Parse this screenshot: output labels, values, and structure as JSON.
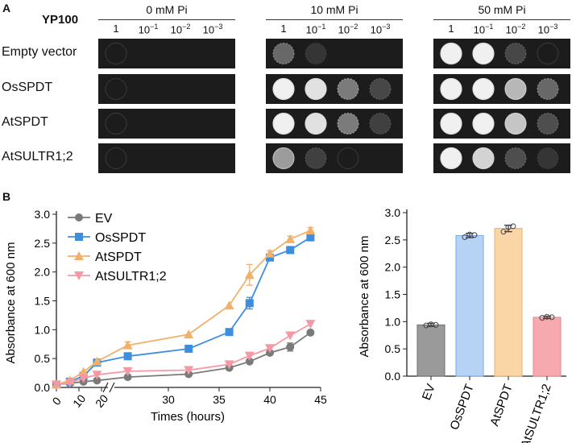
{
  "panel_a": {
    "letter": "A",
    "strain_header": "YP100",
    "conditions": [
      {
        "label": "0 mM Pi",
        "growth": [
          [
            0.05,
            0,
            0,
            0
          ],
          [
            0.05,
            0,
            0,
            0
          ],
          [
            0.05,
            0,
            0,
            0
          ],
          [
            0.05,
            0,
            0,
            0
          ]
        ]
      },
      {
        "label": "10 mM Pi",
        "growth": [
          [
            0.45,
            0.1,
            0,
            0
          ],
          [
            1,
            0.95,
            0.55,
            0.25
          ],
          [
            1,
            0.95,
            0.55,
            0.2
          ],
          [
            0.7,
            0.2,
            0.05,
            0
          ]
        ]
      },
      {
        "label": "50 mM Pi",
        "growth": [
          [
            1,
            1,
            0.25,
            0.05
          ],
          [
            1,
            1,
            0.8,
            0.45
          ],
          [
            1,
            1,
            0.85,
            0.3
          ],
          [
            1,
            0.9,
            0.3,
            0.1
          ]
        ]
      }
    ],
    "dilutions": [
      {
        "base": "1",
        "exp": ""
      },
      {
        "base": "10",
        "exp": "−1"
      },
      {
        "base": "10",
        "exp": "−2"
      },
      {
        "base": "10",
        "exp": "−3"
      }
    ],
    "strains": [
      "Empty vector",
      "OsSPDT",
      "AtSPDT",
      "AtSULTR1;2"
    ]
  },
  "panel_b": {
    "letter": "B"
  },
  "chart_data": [
    {
      "type": "line",
      "xlabel": "Times (hours)",
      "ylabel": "Absorbance at 600 nm",
      "ylim": [
        0,
        3.0
      ],
      "y_ticks": [
        "0.0",
        "0.5",
        "1.0",
        "1.5",
        "2.0",
        "2.5",
        "3.0"
      ],
      "x_ticks_early": [
        "0",
        "10",
        "20"
      ],
      "x_ticks_late": [
        "30",
        "35",
        "40",
        "45"
      ],
      "x_axis_break": true,
      "grid": false,
      "legend": "top-left",
      "x": [
        0,
        6,
        12,
        18,
        26,
        32,
        36,
        38,
        40,
        42,
        44
      ],
      "series": [
        {
          "name": "EV",
          "color": "#7a7a7a",
          "marker": "circle",
          "values": [
            0.05,
            0.07,
            0.1,
            0.12,
            0.18,
            0.23,
            0.34,
            0.45,
            0.6,
            0.7,
            0.95
          ],
          "errors": [
            0,
            0,
            0,
            0,
            0,
            0,
            0,
            0,
            0.03,
            0.07,
            0.03
          ]
        },
        {
          "name": "OsSPDT",
          "color": "#3e8ee0",
          "marker": "square",
          "values": [
            0.05,
            0.1,
            0.2,
            0.43,
            0.54,
            0.67,
            0.96,
            1.46,
            2.25,
            2.38,
            2.6
          ],
          "errors": [
            0,
            0,
            0,
            0,
            0,
            0,
            0,
            0.1,
            0.05,
            0.04,
            0.04
          ]
        },
        {
          "name": "AtSPDT",
          "color": "#f2b16a",
          "marker": "triangle-up",
          "values": [
            0.05,
            0.12,
            0.27,
            0.45,
            0.73,
            0.92,
            1.42,
            1.95,
            2.32,
            2.57,
            2.72
          ],
          "errors": [
            0,
            0,
            0,
            0,
            0.06,
            0,
            0,
            0.18,
            0.05,
            0.05,
            0.05
          ]
        },
        {
          "name": "AtSULTR1;2",
          "color": "#f59aa4",
          "marker": "triangle-down",
          "values": [
            0.05,
            0.08,
            0.16,
            0.22,
            0.28,
            0.3,
            0.4,
            0.55,
            0.68,
            0.9,
            1.1
          ],
          "errors": [
            0,
            0,
            0,
            0,
            0,
            0,
            0,
            0,
            0,
            0,
            0
          ]
        }
      ]
    },
    {
      "type": "bar",
      "ylabel": "Absorbance at 600 nm",
      "ylim": [
        0,
        3.0
      ],
      "y_ticks": [
        "0.0",
        "0.5",
        "1.0",
        "1.5",
        "2.0",
        "2.5",
        "3.0"
      ],
      "categories": [
        "EV",
        "OsSPDT",
        "AtSPDT",
        "AtSULTR1;2"
      ],
      "values": [
        0.94,
        2.58,
        2.71,
        1.08
      ],
      "errors": [
        0.03,
        0.04,
        0.06,
        0.02
      ],
      "points": [
        [
          0.93,
          0.95,
          0.94
        ],
        [
          2.55,
          2.6,
          2.59
        ],
        [
          2.65,
          2.73,
          2.75
        ],
        [
          1.07,
          1.09,
          1.08
        ]
      ],
      "colors": [
        "#9a9a9a",
        "#b6d2f5",
        "#fad5a6",
        "#f7a9b0"
      ],
      "edge_colors": [
        "#6e6e6e",
        "#7aa9e3",
        "#e6b072",
        "#e58890"
      ]
    }
  ]
}
